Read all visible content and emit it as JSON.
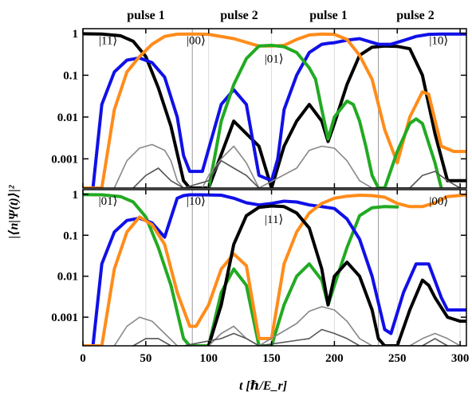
{
  "pulse_labels": [
    "pulse 1",
    "pulse 2",
    "pulse 1",
    "pulse 2"
  ],
  "colors": {
    "black": "#000000",
    "blue": "#1010e8",
    "orange": "#ff8c1a",
    "green": "#22aa22",
    "gray": "#888888",
    "darkgray": "#555555",
    "red": "#ee0000",
    "navy": "#000099"
  },
  "chart_data": [
    {
      "type": "line",
      "panel": "top",
      "title": "",
      "xlabel": "t  [ℏ/E_r]",
      "ylabel": "|⟨n|Ψ(t)⟩|²",
      "xlim": [
        0,
        305
      ],
      "ylim": [
        0.0002,
        1.3
      ],
      "yscale": "log",
      "yticks": [
        1,
        0.1,
        0.01,
        0.001
      ],
      "ytick_labels": [
        "1",
        "0.1",
        "0.01",
        "0.001"
      ],
      "grid": true,
      "vlines": [
        87,
        235
      ],
      "state_labels": [
        {
          "text": "|11⟩",
          "x": 20,
          "y": 0.55
        },
        {
          "text": "|00⟩",
          "x": 90,
          "y": 0.55
        },
        {
          "text": "|01⟩",
          "x": 152,
          "y": 0.2
        },
        {
          "text": "|10⟩",
          "x": 283,
          "y": 0.55
        }
      ],
      "series": [
        {
          "color": "black",
          "x": [
            0,
            15,
            30,
            40,
            50,
            60,
            70,
            80,
            85,
            90,
            100,
            120,
            140,
            150,
            160,
            170,
            180,
            190,
            195,
            200,
            210,
            220,
            230,
            240,
            250,
            260,
            270,
            280,
            290,
            300,
            305
          ],
          "y": [
            0.98,
            0.97,
            0.88,
            0.65,
            0.28,
            0.05,
            0.006,
            0.0003,
            0.00015,
            0.0001,
            0.0002,
            0.008,
            0.002,
            0.0002,
            0.002,
            0.008,
            0.02,
            0.008,
            0.0026,
            0.007,
            0.06,
            0.3,
            0.47,
            0.5,
            0.49,
            0.43,
            0.1,
            0.004,
            0.0003,
            0.0003,
            0.0003
          ]
        },
        {
          "color": "blue",
          "x": [
            0,
            8,
            15,
            25,
            35,
            45,
            55,
            65,
            75,
            80,
            85,
            95,
            110,
            120,
            130,
            140,
            150,
            155,
            160,
            170,
            180,
            190,
            195,
            200,
            210,
            220,
            235,
            245,
            255,
            265,
            275,
            285,
            295,
            305
          ],
          "y": [
            0.0002,
            0.0002,
            0.02,
            0.12,
            0.23,
            0.26,
            0.2,
            0.09,
            0.01,
            0.0012,
            0.0005,
            0.0005,
            0.02,
            0.045,
            0.02,
            0.0004,
            0.0003,
            0.001,
            0.015,
            0.1,
            0.35,
            0.55,
            0.58,
            0.6,
            0.69,
            0.75,
            0.55,
            0.55,
            0.68,
            0.85,
            0.95,
            0.97,
            0.97,
            0.97
          ]
        },
        {
          "color": "orange",
          "x": [
            0,
            15,
            25,
            35,
            45,
            55,
            65,
            75,
            85,
            90,
            100,
            120,
            140,
            150,
            160,
            170,
            180,
            190,
            200,
            210,
            220,
            230,
            240,
            250,
            260,
            270,
            275,
            285,
            295,
            305
          ],
          "y": [
            0.0002,
            0.0002,
            0.015,
            0.12,
            0.28,
            0.55,
            0.85,
            0.96,
            0.97,
            0.97,
            0.95,
            0.75,
            0.5,
            0.5,
            0.52,
            0.72,
            0.92,
            0.97,
            0.95,
            0.72,
            0.3,
            0.08,
            0.005,
            0.0008,
            0.01,
            0.04,
            0.035,
            0.002,
            0.0015,
            0.0015
          ]
        },
        {
          "color": "green",
          "x": [
            100,
            105,
            110,
            120,
            130,
            140,
            150,
            160,
            170,
            180,
            185,
            190,
            195,
            200,
            210,
            215,
            220,
            225,
            230,
            235,
            240,
            250,
            260,
            265,
            270,
            280,
            285
          ],
          "y": [
            0.0002,
            0.0012,
            0.008,
            0.06,
            0.25,
            0.5,
            0.52,
            0.48,
            0.35,
            0.15,
            0.08,
            0.015,
            0.003,
            0.01,
            0.024,
            0.02,
            0.008,
            0.002,
            0.0004,
            0.0002,
            0.0002,
            0.0015,
            0.007,
            0.009,
            0.007,
            0.0008,
            0.0002
          ]
        },
        {
          "color": "gray",
          "x": [
            25,
            35,
            45,
            55,
            65,
            70,
            75,
            80,
            85,
            90,
            95,
            100,
            110,
            120,
            130,
            140,
            170,
            180,
            190,
            200,
            210,
            220,
            230,
            240,
            250,
            260,
            270,
            280,
            290,
            300,
            305
          ],
          "y": [
            0.0002,
            0.0009,
            0.0018,
            0.0022,
            0.0016,
            0.0009,
            0.0003,
            0.0002,
            0.0002,
            0.0002,
            0.0002,
            0.0004,
            0.001,
            0.002,
            0.0008,
            0.0002,
            0.0006,
            0.0016,
            0.002,
            0.0018,
            0.0009,
            0.0003,
            0.0002,
            0.0002,
            0.0002,
            0.0002,
            0.0002,
            0.0002,
            0.0002,
            0.0002,
            0.0002
          ]
        },
        {
          "color": "darkgray",
          "x": [
            40,
            50,
            60,
            70,
            80,
            100,
            110,
            120,
            130,
            140,
            150,
            260,
            270,
            280,
            290,
            300,
            305
          ],
          "y": [
            0.0002,
            0.0004,
            0.0006,
            0.0003,
            0.0002,
            0.0003,
            0.0009,
            0.0006,
            0.0004,
            0.0002,
            0.0002,
            0.0002,
            0.0004,
            0.0005,
            0.0003,
            0.0002,
            0.0002
          ]
        }
      ]
    },
    {
      "type": "line",
      "panel": "bottom",
      "title": "",
      "xlabel": "t  [ℏ/E_r]",
      "ylabel": "|⟨n|Ψ(t)⟩|²",
      "xlim": [
        0,
        305
      ],
      "ylim": [
        0.0002,
        1.3
      ],
      "yscale": "log",
      "yticks": [
        1,
        0.1,
        0.01,
        0.001
      ],
      "ytick_labels": [
        "1",
        "0.1",
        "0.01",
        "0.001"
      ],
      "xticks": [
        0,
        50,
        100,
        150,
        200,
        250,
        300
      ],
      "xtick_labels": [
        "0",
        "50",
        "100",
        "150",
        "200",
        "250",
        "300"
      ],
      "grid": true,
      "vlines": [
        87,
        235
      ],
      "state_labels": [
        {
          "text": "|01⟩",
          "x": 20,
          "y": 0.55
        },
        {
          "text": "|10⟩",
          "x": 90,
          "y": 0.55
        },
        {
          "text": "|11⟩",
          "x": 152,
          "y": 0.2
        },
        {
          "text": "|00⟩",
          "x": 283,
          "y": 0.55
        }
      ],
      "series": [
        {
          "color": "green",
          "x": [
            0,
            15,
            30,
            40,
            50,
            60,
            70,
            80,
            85,
            90,
            100,
            110,
            120,
            130,
            140,
            150,
            160,
            170,
            180,
            190,
            195,
            200,
            210,
            220,
            230,
            240,
            250
          ],
          "y": [
            0.98,
            0.97,
            0.88,
            0.65,
            0.28,
            0.05,
            0.006,
            0.0003,
            0.00015,
            0.0001,
            0.0002,
            0.004,
            0.015,
            0.006,
            0.0002,
            0.0002,
            0.002,
            0.01,
            0.02,
            0.008,
            0.002,
            0.006,
            0.05,
            0.3,
            0.47,
            0.5,
            0.49
          ]
        },
        {
          "color": "blue",
          "x": [
            0,
            8,
            15,
            25,
            35,
            45,
            55,
            65,
            75,
            80,
            85,
            95,
            110,
            120,
            130,
            140,
            150,
            160,
            170,
            180,
            190,
            200,
            210,
            220,
            230,
            240,
            245,
            255,
            265,
            275,
            285,
            290,
            295,
            305
          ],
          "y": [
            0.0002,
            0.0002,
            0.02,
            0.12,
            0.23,
            0.26,
            0.2,
            0.09,
            0.8,
            0.93,
            0.97,
            0.97,
            0.95,
            0.8,
            0.62,
            0.55,
            0.6,
            0.68,
            0.65,
            0.55,
            0.5,
            0.45,
            0.25,
            0.08,
            0.01,
            0.0005,
            0.0004,
            0.004,
            0.02,
            0.02,
            0.003,
            0.0015,
            0.0015,
            0.0015
          ]
        },
        {
          "color": "orange",
          "x": [
            0,
            15,
            25,
            35,
            45,
            55,
            65,
            75,
            85,
            90,
            100,
            110,
            120,
            130,
            140,
            150,
            160,
            170,
            180,
            190,
            200,
            210,
            220,
            230,
            240,
            250,
            260,
            270,
            280,
            290,
            305
          ],
          "y": [
            0.0002,
            0.0002,
            0.015,
            0.12,
            0.28,
            0.18,
            0.06,
            0.004,
            0.0006,
            0.0006,
            0.002,
            0.015,
            0.035,
            0.018,
            0.0003,
            0.0003,
            0.02,
            0.12,
            0.35,
            0.6,
            0.8,
            0.9,
            0.95,
            0.93,
            0.85,
            0.6,
            0.5,
            0.5,
            0.62,
            0.88,
            0.97
          ]
        },
        {
          "color": "black",
          "x": [
            100,
            110,
            120,
            130,
            140,
            150,
            160,
            170,
            180,
            190,
            195,
            200,
            210,
            220,
            230,
            235,
            240,
            250,
            260,
            270,
            275,
            280,
            290,
            300,
            305
          ],
          "y": [
            0.0002,
            0.002,
            0.06,
            0.3,
            0.48,
            0.52,
            0.5,
            0.35,
            0.15,
            0.015,
            0.002,
            0.01,
            0.022,
            0.01,
            0.0015,
            0.0003,
            0.0002,
            0.0002,
            0.0015,
            0.008,
            0.006,
            0.003,
            0.001,
            0.0008,
            0.0008
          ]
        },
        {
          "color": "gray",
          "x": [
            25,
            35,
            45,
            55,
            65,
            75,
            85,
            90,
            100,
            110,
            120,
            130,
            140,
            170,
            180,
            190,
            200,
            210,
            220,
            230,
            240,
            260,
            270,
            280,
            290,
            300,
            305
          ],
          "y": [
            0.0002,
            0.0006,
            0.001,
            0.0008,
            0.0004,
            0.0002,
            0.0002,
            0.0002,
            0.0002,
            0.0004,
            0.0006,
            0.0003,
            0.0002,
            0.0007,
            0.0014,
            0.0018,
            0.0015,
            0.0008,
            0.0003,
            0.0002,
            0.0002,
            0.0002,
            0.0003,
            0.0004,
            0.0003,
            0.0002,
            0.0002
          ]
        },
        {
          "color": "darkgray",
          "x": [
            40,
            50,
            60,
            70,
            80,
            110,
            120,
            130,
            140,
            180,
            190,
            200,
            210,
            220,
            270,
            280,
            290
          ],
          "y": [
            0.0002,
            0.0003,
            0.0003,
            0.0002,
            0.0002,
            0.0003,
            0.0004,
            0.0003,
            0.0002,
            0.0003,
            0.0005,
            0.0004,
            0.0003,
            0.0002,
            0.0002,
            0.0003,
            0.0002
          ]
        }
      ]
    }
  ]
}
